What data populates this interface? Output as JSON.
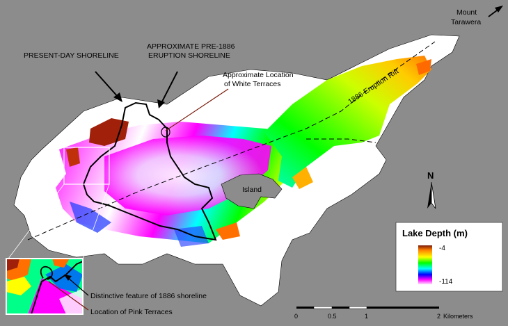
{
  "labels": {
    "mount": "Mount",
    "tarawera": "Tarawera",
    "present_shoreline": "PRESENT-DAY SHORELINE",
    "pre1886_line1": "APPROXIMATE PRE-1886",
    "pre1886_line2": "ERUPTION SHORELINE",
    "white_terraces_line1": "Approximate Location",
    "white_terraces_line2": "of White Terraces",
    "rift": "1886 Eruption Rift",
    "island": "Island",
    "north": "N",
    "distinctive_feature": "Distinctive feature of 1886 shoreline",
    "pink_terraces": "Location of Pink Terraces"
  },
  "legend": {
    "title": "Lake Depth (m)",
    "max_label": "-4",
    "min_label": "-114",
    "colors": [
      "#7a1a0a",
      "#ff7f00",
      "#ffff00",
      "#00ff00",
      "#00ffff",
      "#0000ff",
      "#ff00ff",
      "#ffffff"
    ]
  },
  "scale": {
    "ticks": [
      "0",
      "0.5",
      "1",
      "2"
    ],
    "unit": "Kilometers"
  }
}
